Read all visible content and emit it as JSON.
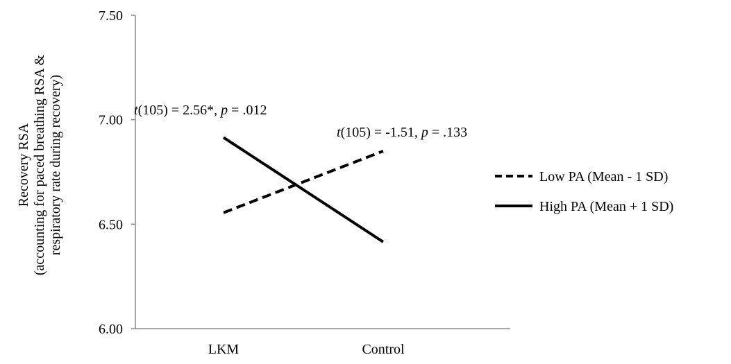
{
  "chart_data": {
    "type": "line",
    "title": "",
    "xlabel": "",
    "ylabel_lines": [
      "Recovery RSA",
      "(accounting for paced breathing RSA &",
      "respiratory rate during recovery)"
    ],
    "categories": [
      "LKM",
      "Control"
    ],
    "ylim": [
      6.0,
      7.5
    ],
    "yticks": [
      "6.00",
      "6.50",
      "7.00",
      "7.50"
    ],
    "grid": false,
    "legend_position": "right",
    "series": [
      {
        "name": "Low PA (Mean - 1 SD)",
        "values": [
          6.555,
          6.85
        ],
        "dash": "dashed",
        "color": "#000000"
      },
      {
        "name": "High PA (Mean + 1 SD)",
        "values": [
          6.915,
          6.415
        ],
        "dash": "solid",
        "color": "#000000"
      }
    ],
    "annotations": [
      {
        "stat": "t",
        "df": "(105) = 2.56*, ",
        "p": "p",
        "pval": " = .012"
      },
      {
        "stat": "t",
        "df": "(105) = -1.51, ",
        "p": "p",
        "pval": " = .133"
      }
    ]
  }
}
